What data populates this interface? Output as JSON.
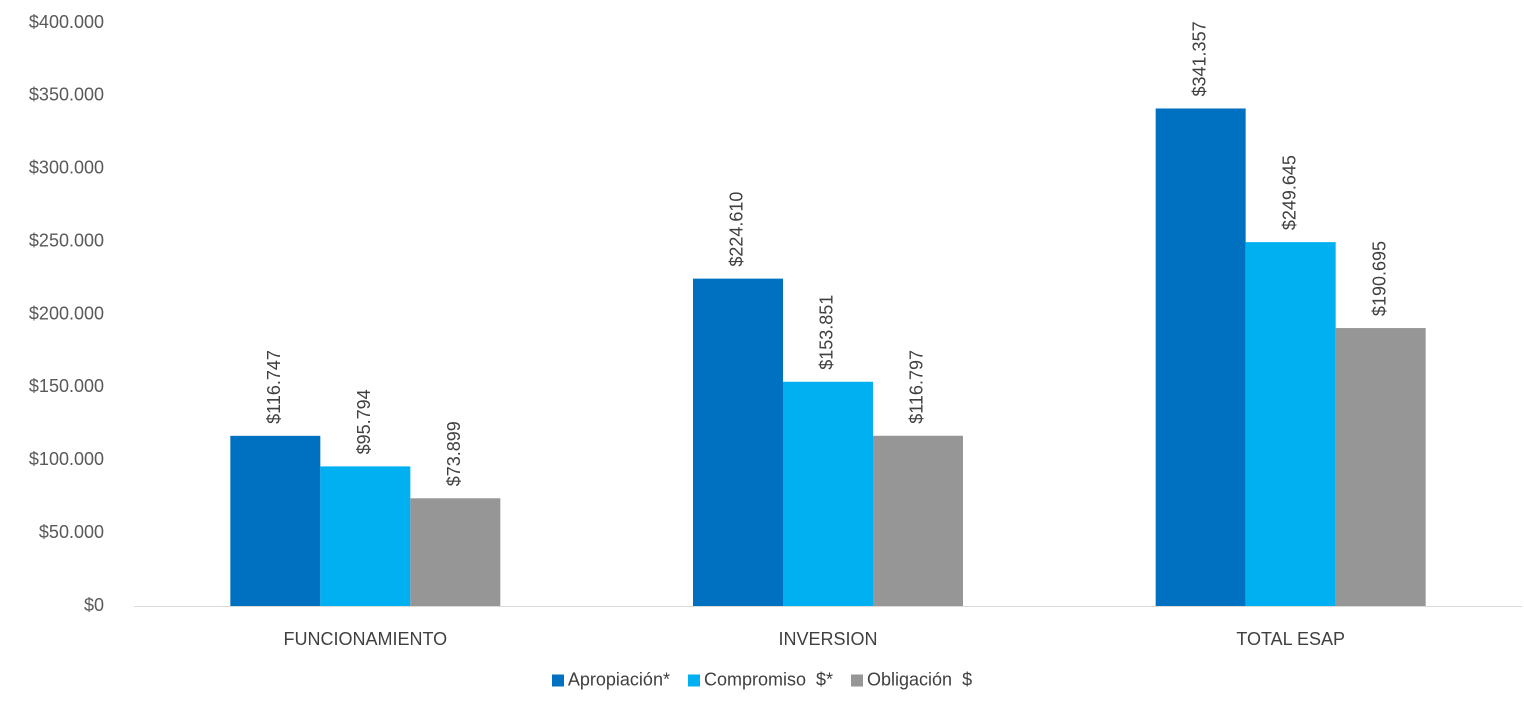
{
  "chart_data": {
    "type": "bar",
    "categories": [
      "FUNCIONAMIENTO",
      "INVERSION",
      "TOTAL ESAP"
    ],
    "series": [
      {
        "name": "Apropiación*",
        "color": "#0070C0",
        "values": [
          116747,
          224610,
          341357
        ],
        "labels": [
          "$116.747",
          "$224.610",
          "$341.357"
        ]
      },
      {
        "name": "Compromiso  $*",
        "color": "#00B0F0",
        "values": [
          95794,
          153851,
          249645
        ],
        "labels": [
          "$95.794",
          "$153.851",
          "$249.645"
        ]
      },
      {
        "name": "Obligación  $",
        "color": "#969696",
        "values": [
          73899,
          116797,
          190695
        ],
        "labels": [
          "$73.899",
          "$116.797",
          "$190.695"
        ]
      }
    ],
    "ylim": [
      0,
      400000
    ],
    "yticks": [
      0,
      50000,
      100000,
      150000,
      200000,
      250000,
      300000,
      350000,
      400000
    ],
    "ytick_labels": [
      "$0",
      "$50.000",
      "$100.000",
      "$150.000",
      "$200.000",
      "$250.000",
      "$300.000",
      "$350.000",
      "$400.000"
    ],
    "grid": false,
    "legend": "bottom",
    "axis_color": "#D9D9D9"
  }
}
